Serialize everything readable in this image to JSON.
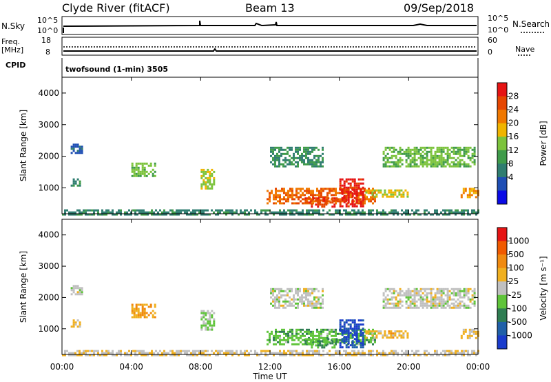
{
  "header": {
    "station": "Clyde River (fitACF)",
    "beam": "Beam 13",
    "date": "09/Sep/2018"
  },
  "top_panels": {
    "nsky_label": "N.Sky",
    "nsky_ticks": [
      "10^5",
      "10^0"
    ],
    "nsearch_label": "N.Search",
    "nsearch_ticks": [
      "10^5",
      "10^0"
    ],
    "freq_label": "Freq.",
    "freq_unit": "[MHz]",
    "freq_ticks": [
      "18",
      "8"
    ],
    "nave_label": "Nave",
    "nave_ticks": [
      "60",
      "0"
    ],
    "cpid_label": "CPID",
    "cpid_value": "twofsound (1-min) 3505"
  },
  "colors": {
    "power_scale": [
      "#0a0ae6",
      "#1e4eb4",
      "#2f7d70",
      "#3f9b4a",
      "#7cc33c",
      "#f0b400",
      "#f07800",
      "#e64600",
      "#e61414"
    ],
    "velocity_scale": [
      "#1a3ccc",
      "#2060a8",
      "#2f7d52",
      "#5fc43a",
      "#c0c0c0",
      "#f0b020",
      "#f08a10",
      "#f05a00",
      "#e61414"
    ]
  },
  "chart_data": [
    {
      "type": "heatmap",
      "name": "power",
      "title": "",
      "xlabel": "",
      "ylabel": "Slant Range [km]",
      "xlim": [
        0,
        24
      ],
      "ylim": [
        180,
        4500
      ],
      "xticks": [
        "00:00",
        "04:00",
        "08:00",
        "12:00",
        "16:00",
        "20:00",
        "00:00"
      ],
      "yticks": [
        1000,
        2000,
        3000,
        4000
      ],
      "colorbar": {
        "label": "Power [dB]",
        "ticks": [
          "28",
          "24",
          "20",
          "16",
          "12",
          "8",
          "4"
        ],
        "range": [
          0,
          30
        ]
      },
      "regions": [
        {
          "t0": 0.5,
          "t1": 1.0,
          "r0": 1100,
          "r1": 1300,
          "v": 9
        },
        {
          "t0": 0.5,
          "t1": 1.2,
          "r0": 2100,
          "r1": 2400,
          "v": 6
        },
        {
          "t0": 4.0,
          "t1": 5.4,
          "r0": 1400,
          "r1": 1800,
          "v": 14
        },
        {
          "t0": 8.0,
          "t1": 8.8,
          "r0": 1000,
          "r1": 1600,
          "v": 16
        },
        {
          "t0": 11.8,
          "t1": 18.0,
          "r0": 500,
          "r1": 1000,
          "v": 23
        },
        {
          "t0": 16.0,
          "t1": 17.4,
          "r0": 400,
          "r1": 1300,
          "v": 28
        },
        {
          "t0": 14.0,
          "t1": 15.8,
          "r0": 400,
          "r1": 700,
          "v": 26
        },
        {
          "t0": 12.0,
          "t1": 15.0,
          "r0": 1700,
          "r1": 2300,
          "v": 10
        },
        {
          "t0": 18.5,
          "t1": 23.8,
          "r0": 1700,
          "r1": 2300,
          "v": 14
        },
        {
          "t0": 17.5,
          "t1": 20.0,
          "r0": 700,
          "r1": 950,
          "v": 17
        },
        {
          "t0": 23.0,
          "t1": 24.0,
          "r0": 700,
          "r1": 1000,
          "v": 20
        },
        {
          "t0": 0.0,
          "t1": 24.0,
          "r0": 180,
          "r1": 320,
          "v": 9
        }
      ]
    },
    {
      "type": "heatmap",
      "name": "velocity",
      "title": "",
      "xlabel": "Time UT",
      "ylabel": "Slant Range [km]",
      "xlim": [
        0,
        24
      ],
      "ylim": [
        180,
        4500
      ],
      "xticks": [
        "00:00",
        "04:00",
        "08:00",
        "12:00",
        "16:00",
        "20:00",
        "00:00"
      ],
      "yticks": [
        1000,
        2000,
        3000,
        4000
      ],
      "colorbar": {
        "label": "Velocity [m s⁻¹]",
        "ticks": [
          "1000",
          "500",
          "100",
          "25",
          "-25",
          "-100",
          "-500",
          "-1000"
        ],
        "range": [
          -1000,
          1000
        ]
      },
      "regions": [
        {
          "t0": 0.5,
          "t1": 1.0,
          "r0": 1100,
          "r1": 1300,
          "v": 150
        },
        {
          "t0": 0.5,
          "t1": 1.2,
          "r0": 2100,
          "r1": 2400,
          "v": 0
        },
        {
          "t0": 4.0,
          "t1": 5.4,
          "r0": 1400,
          "r1": 1800,
          "v": 300
        },
        {
          "t0": 8.0,
          "t1": 8.8,
          "r0": 1000,
          "r1": 1600,
          "v": -80
        },
        {
          "t0": 11.8,
          "t1": 18.0,
          "r0": 500,
          "r1": 1000,
          "v": -250
        },
        {
          "t0": 16.0,
          "t1": 17.4,
          "r0": 400,
          "r1": 1300,
          "v": -800
        },
        {
          "t0": 14.0,
          "t1": 15.8,
          "r0": 400,
          "r1": 700,
          "v": -300
        },
        {
          "t0": 12.0,
          "t1": 15.0,
          "r0": 1700,
          "r1": 2300,
          "v": 0
        },
        {
          "t0": 18.5,
          "t1": 23.8,
          "r0": 1700,
          "r1": 2300,
          "v": 0
        },
        {
          "t0": 17.5,
          "t1": 20.0,
          "r0": 700,
          "r1": 950,
          "v": 200
        },
        {
          "t0": 23.0,
          "t1": 24.0,
          "r0": 700,
          "r1": 1000,
          "v": 150
        },
        {
          "t0": 0.0,
          "t1": 24.0,
          "r0": 180,
          "r1": 320,
          "v": 80
        }
      ]
    }
  ]
}
